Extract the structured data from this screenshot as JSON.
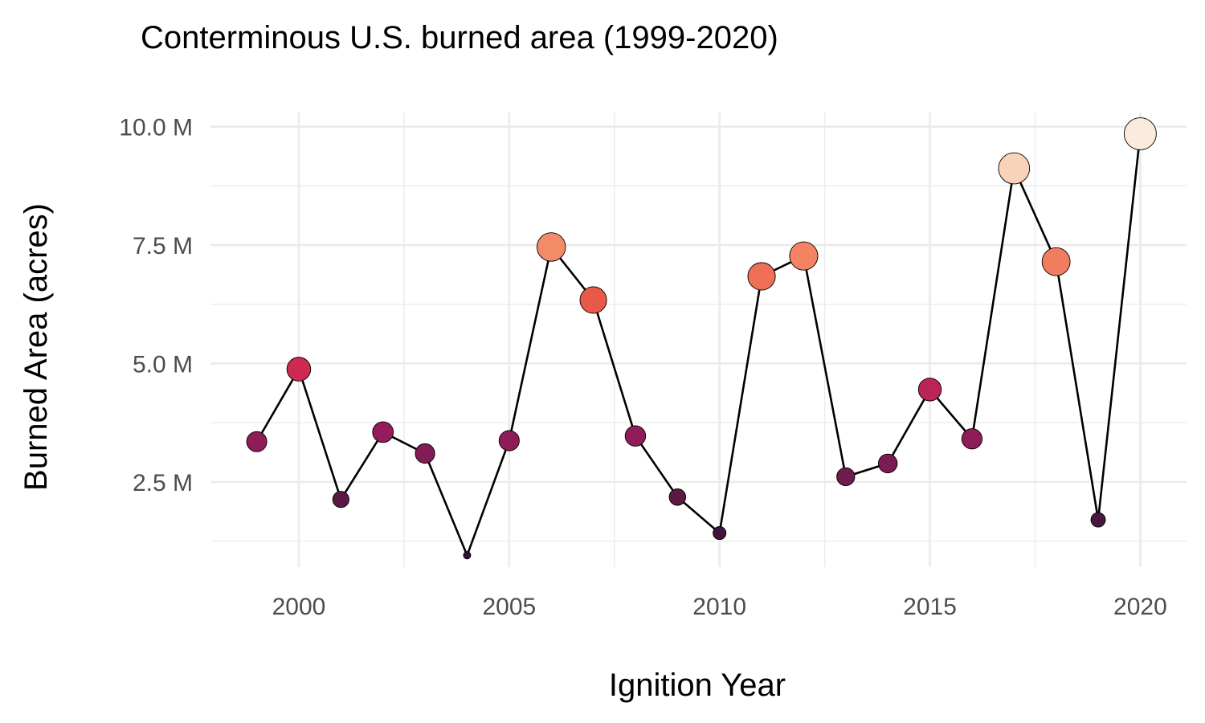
{
  "chart_data": {
    "type": "scatter",
    "title": "Conterminous U.S. burned area (1999-2020)",
    "xlabel": "Ignition Year",
    "ylabel": "Burned Area (acres)",
    "x": [
      1999,
      2000,
      2001,
      2002,
      2003,
      2004,
      2005,
      2006,
      2007,
      2008,
      2009,
      2010,
      2011,
      2012,
      2013,
      2014,
      2015,
      2016,
      2017,
      2018,
      2019,
      2020
    ],
    "values": [
      3.35,
      4.88,
      2.13,
      3.55,
      3.1,
      0.95,
      3.37,
      7.46,
      6.34,
      3.47,
      2.18,
      1.42,
      6.84,
      7.27,
      2.61,
      2.89,
      4.45,
      3.41,
      9.12,
      7.15,
      1.7,
      9.85
    ],
    "value_unit": "M",
    "xlim": [
      1997.9,
      2021.1
    ],
    "ylim": [
      0.7,
      10.3
    ],
    "x_ticks": [
      2000,
      2005,
      2010,
      2015,
      2020
    ],
    "x_tick_labels": [
      "2000",
      "2005",
      "2010",
      "2015",
      "2020"
    ],
    "x_minor_ticks": [
      2002.5,
      2007.5,
      2012.5,
      2017.5
    ],
    "y_ticks": [
      2.5,
      5.0,
      7.5,
      10.0
    ],
    "y_tick_labels": [
      "2.5 M",
      "5.0 M",
      "7.5 M",
      "10.0 M"
    ],
    "y_minor_ticks": [
      1.25,
      3.75,
      6.25,
      8.75
    ],
    "grid": true,
    "legend": "none",
    "color_scale": [
      "#2d1239",
      "#52183f",
      "#7b1c53",
      "#a41c5f",
      "#cf2a51",
      "#e4443d",
      "#f07158",
      "#f59e74",
      "#f8c9ad",
      "#faebdd"
    ],
    "size_encodes": "value",
    "line_color": "#000000"
  }
}
